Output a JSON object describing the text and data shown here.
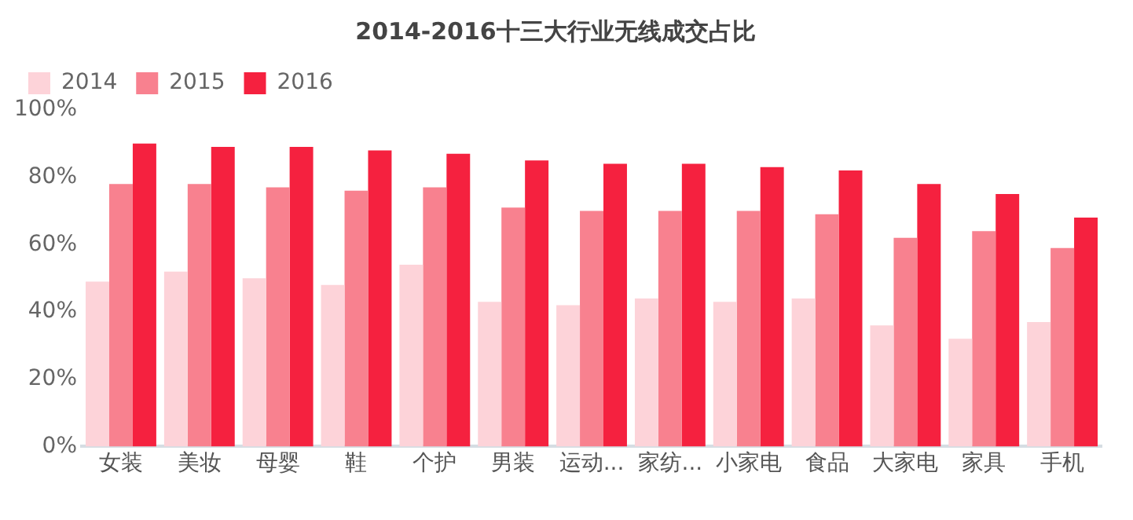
{
  "chart_data": {
    "type": "bar",
    "title": "2014-2016十三大行业无线成交占比",
    "categories": [
      "女装",
      "美妆",
      "母婴",
      "鞋",
      "个护",
      "男装",
      "运动...",
      "家纺...",
      "小家电",
      "食品",
      "大家电",
      "家具",
      "手机"
    ],
    "series": [
      {
        "name": "2014",
        "color": "#fdd3d9",
        "values": [
          49,
          52,
          50,
          48,
          54,
          43,
          42,
          44,
          43,
          44,
          36,
          32,
          37
        ]
      },
      {
        "name": "2015",
        "color": "#f8818f",
        "values": [
          78,
          78,
          77,
          76,
          77,
          71,
          70,
          70,
          70,
          69,
          62,
          64,
          59
        ]
      },
      {
        "name": "2016",
        "color": "#f5213f",
        "values": [
          90,
          89,
          89,
          88,
          87,
          85,
          84,
          84,
          83,
          82,
          78,
          75,
          68
        ]
      }
    ],
    "ylim": [
      0,
      100
    ],
    "yticks": [
      {
        "value": 0,
        "label": "0%"
      },
      {
        "value": 20,
        "label": "20%"
      },
      {
        "value": 40,
        "label": "40%"
      },
      {
        "value": 60,
        "label": "60%"
      },
      {
        "value": 80,
        "label": "80%"
      },
      {
        "value": 100,
        "label": "100%"
      }
    ],
    "grid": false,
    "legend": "top left"
  }
}
